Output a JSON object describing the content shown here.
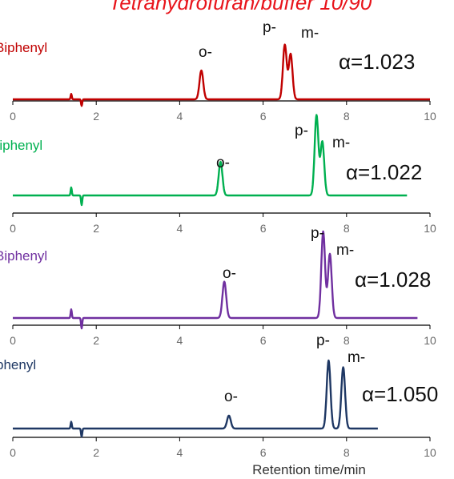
{
  "page": {
    "title": "Tetrahydrofuran/buffer 10/90"
  },
  "chart_data": [
    {
      "type": "line",
      "series_label": "Biphenyl",
      "color": "#c00000",
      "x_ticks": [
        "0",
        "2",
        "4",
        "6",
        "8",
        "10"
      ],
      "xlim": [
        0,
        10
      ],
      "xlabel": "",
      "peaks": [
        {
          "label": "o-",
          "x": 4.52,
          "height": 0.53
        },
        {
          "label": "p-",
          "x": 6.52,
          "height": 1.0
        },
        {
          "label": "m-",
          "x": 6.66,
          "height": 0.83
        }
      ],
      "alpha": "α=1.023",
      "baseline_end": 10.0
    },
    {
      "type": "line",
      "series_label": "Biphenyl",
      "color": "#00b050",
      "x_ticks": [
        "0",
        "2",
        "4",
        "6",
        "8",
        "10"
      ],
      "xlim": [
        0,
        10
      ],
      "xlabel": "",
      "peaks": [
        {
          "label": "o-",
          "x": 4.98,
          "height": 0.42
        },
        {
          "label": "p-",
          "x": 7.28,
          "height": 1.0
        },
        {
          "label": "m-",
          "x": 7.42,
          "height": 0.67
        }
      ],
      "alpha": "α=1.022",
      "baseline_end": 9.45
    },
    {
      "type": "line",
      "series_label": "Biphenyl",
      "color": "#7030a0",
      "x_ticks": [
        "0",
        "2",
        "4",
        "6",
        "8",
        "10"
      ],
      "xlim": [
        0,
        10
      ],
      "xlabel": "",
      "peaks": [
        {
          "label": "o-",
          "x": 5.07,
          "height": 0.42
        },
        {
          "label": "p-",
          "x": 7.44,
          "height": 1.0
        },
        {
          "label": "m-",
          "x": 7.6,
          "height": 0.74
        }
      ],
      "alpha": "α=1.028",
      "baseline_end": 9.7
    },
    {
      "type": "line",
      "series_label": "phenyl",
      "color": "#1f3864",
      "x_ticks": [
        "0",
        "2",
        "4",
        "6",
        "8",
        "10"
      ],
      "xlim": [
        0,
        10
      ],
      "xlabel": "Retention time/min",
      "peaks": [
        {
          "label": "o-",
          "x": 5.18,
          "height": 0.19
        },
        {
          "label": "p-",
          "x": 7.57,
          "height": 1.0
        },
        {
          "label": "m-",
          "x": 7.92,
          "height": 0.9
        }
      ],
      "alpha": "α=1.050",
      "baseline_end": 8.75
    }
  ]
}
